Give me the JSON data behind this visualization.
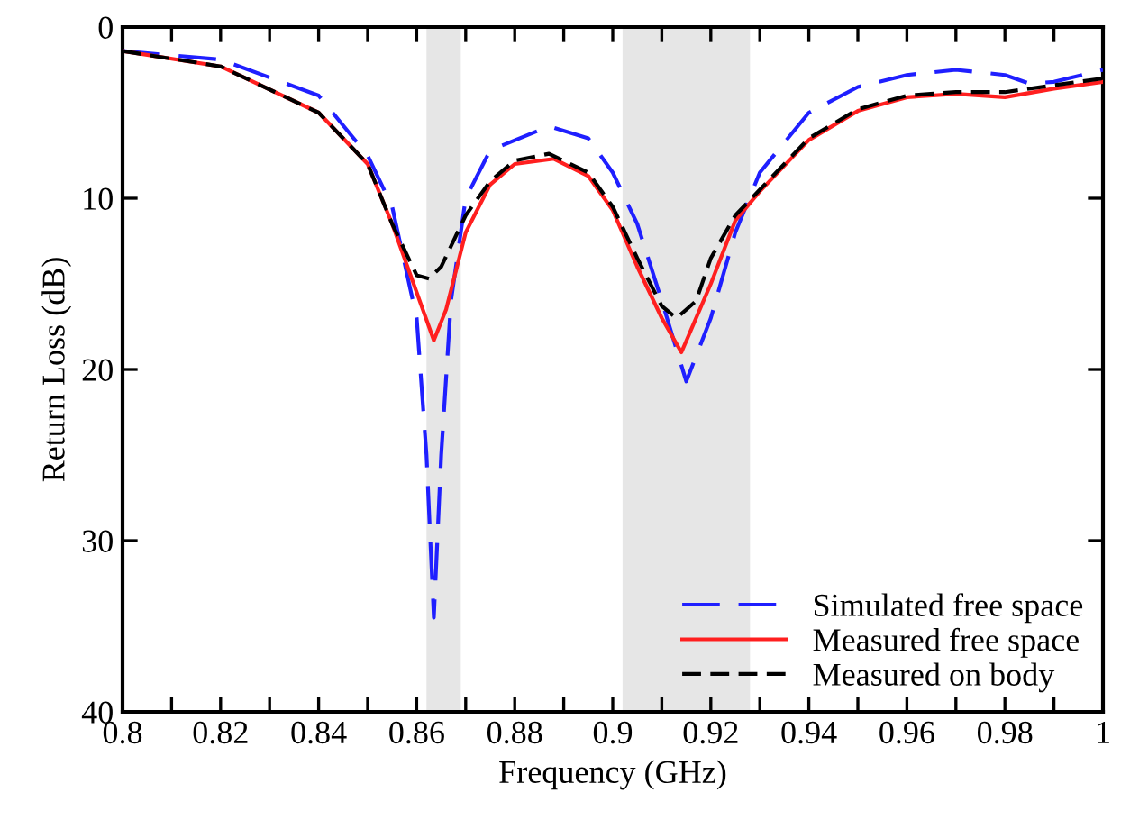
{
  "chart_data": {
    "type": "line",
    "xlabel": "Frequency (GHz)",
    "ylabel": "Return Loss (dB)",
    "xlim": [
      0.8,
      1
    ],
    "ylim": [
      40,
      0
    ],
    "xticks": [
      0.8,
      {
        "value": 0.81,
        "label": null
      },
      0.82,
      {
        "value": 0.83,
        "label": null
      },
      0.84,
      {
        "value": 0.85,
        "label": null
      },
      0.86,
      {
        "value": 0.87,
        "label": null
      },
      0.88,
      {
        "value": 0.89,
        "label": null
      },
      0.9,
      {
        "value": 0.91,
        "label": null
      },
      0.92,
      {
        "value": 0.93,
        "label": null
      },
      0.94,
      {
        "value": 0.95,
        "label": null
      },
      0.96,
      {
        "value": 0.97,
        "label": null
      },
      0.98,
      {
        "value": 0.99,
        "label": null
      },
      1
    ],
    "yticks": [
      0,
      10,
      20,
      30,
      40
    ],
    "grid": false,
    "legend": "bottom right",
    "bands": [
      {
        "axis": "x",
        "from": 0.862,
        "to": 0.869,
        "color": "#e6e6e6"
      },
      {
        "axis": "x",
        "from": 0.902,
        "to": 0.928,
        "color": "#e6e6e6"
      }
    ],
    "series": [
      {
        "name": "Simulated free space",
        "color": "#1f1fff",
        "line_style": "dashed",
        "x": [
          0.8,
          0.82,
          0.84,
          0.85,
          0.855,
          0.86,
          0.862,
          0.8635,
          0.865,
          0.867,
          0.87,
          0.875,
          0.887,
          0.895,
          0.9,
          0.905,
          0.91,
          0.915,
          0.92,
          0.925,
          0.93,
          0.94,
          0.95,
          0.96,
          0.97,
          0.98,
          0.985,
          0.99,
          1.0
        ],
        "values": [
          1.4,
          1.9,
          4,
          7.5,
          10.5,
          17,
          25,
          34.5,
          25,
          16,
          10,
          7.2,
          5.8,
          6.5,
          8.5,
          11.5,
          16,
          20.7,
          17,
          12,
          8.5,
          5,
          3.5,
          2.8,
          2.5,
          2.8,
          3.3,
          3.2,
          2.5
        ]
      },
      {
        "name": "Measured free space",
        "color": "#ff1f1f",
        "line_style": "solid",
        "x": [
          0.8,
          0.82,
          0.84,
          0.85,
          0.855,
          0.86,
          0.8635,
          0.866,
          0.87,
          0.875,
          0.88,
          0.888,
          0.895,
          0.9,
          0.905,
          0.91,
          0.914,
          0.92,
          0.925,
          0.93,
          0.94,
          0.95,
          0.96,
          0.97,
          0.98,
          0.99,
          1.0
        ],
        "values": [
          1.4,
          2.3,
          5,
          8,
          11.5,
          15.5,
          18.3,
          16.5,
          12,
          9.2,
          8,
          7.7,
          8.7,
          10.7,
          14,
          17,
          19,
          15,
          11.3,
          9.6,
          6.6,
          4.9,
          4.1,
          3.9,
          4.1,
          3.6,
          3.2
        ]
      },
      {
        "name": "Measured on body",
        "color": "#000000",
        "line_style": "dashed",
        "x": [
          0.8,
          0.82,
          0.84,
          0.85,
          0.855,
          0.86,
          0.8625,
          0.865,
          0.87,
          0.875,
          0.88,
          0.887,
          0.895,
          0.9,
          0.905,
          0.91,
          0.913,
          0.917,
          0.92,
          0.925,
          0.93,
          0.94,
          0.95,
          0.96,
          0.97,
          0.98,
          0.99,
          1.0
        ],
        "values": [
          1.4,
          2.3,
          5,
          8,
          11.5,
          14.5,
          14.7,
          14,
          11,
          9,
          7.8,
          7.4,
          8.5,
          10.5,
          13.5,
          16.3,
          17,
          16,
          13.5,
          11,
          9.5,
          6.5,
          4.8,
          4.0,
          3.8,
          3.8,
          3.4,
          3.0
        ]
      }
    ]
  }
}
